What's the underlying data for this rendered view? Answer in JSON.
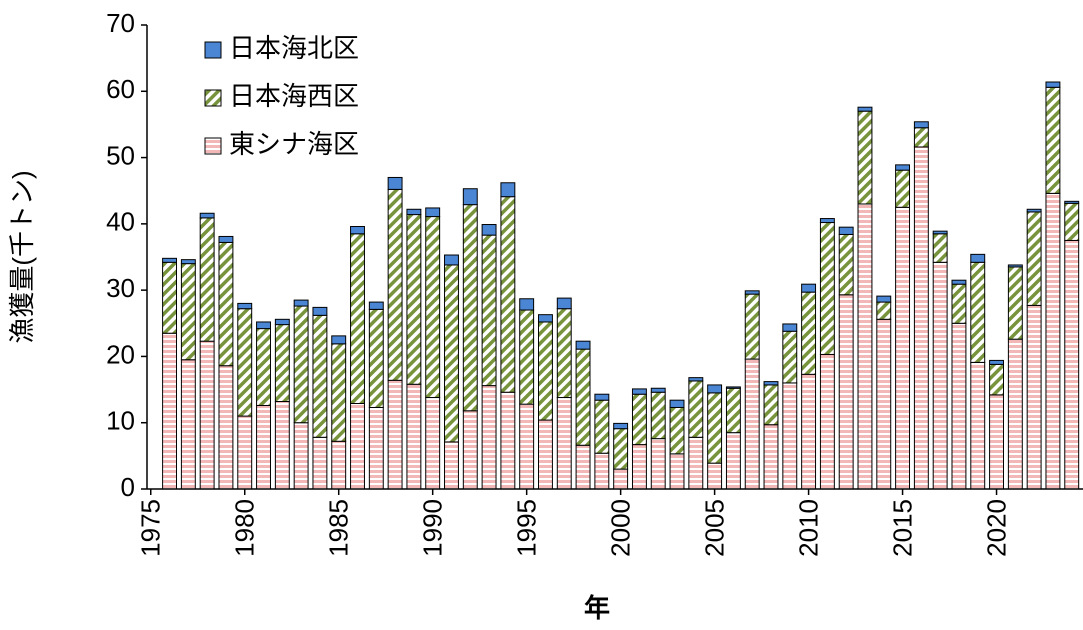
{
  "chart_data": {
    "type": "bar",
    "stacked": true,
    "xlabel": "年",
    "ylabel": "漁獲量(千トン)",
    "x": [
      1976,
      1977,
      1978,
      1979,
      1980,
      1981,
      1982,
      1983,
      1984,
      1985,
      1986,
      1987,
      1988,
      1989,
      1990,
      1991,
      1992,
      1993,
      1994,
      1995,
      1996,
      1997,
      1998,
      1999,
      2000,
      2001,
      2002,
      2003,
      2004,
      2005,
      2006,
      2007,
      2008,
      2009,
      2010,
      2011,
      2012,
      2013,
      2014,
      2015,
      2016,
      2017,
      2018,
      2019,
      2020,
      2021,
      2022,
      2023,
      2024
    ],
    "xlim": [
      1974.8,
      2024.6
    ],
    "xticks": [
      1975,
      1980,
      1985,
      1990,
      1995,
      2000,
      2005,
      2010,
      2015,
      2020
    ],
    "ylim": [
      0,
      70
    ],
    "yticks": [
      0,
      10,
      20,
      30,
      40,
      50,
      60,
      70
    ],
    "legend": "upper-left",
    "series": [
      {
        "name": "東シナ海区",
        "color": "#f2b8b8",
        "pattern": "horizontal",
        "values": [
          23.5,
          19.5,
          22.3,
          18.6,
          11.0,
          12.6,
          13.2,
          10.0,
          7.8,
          7.2,
          12.9,
          12.3,
          16.4,
          15.8,
          13.8,
          7.1,
          11.8,
          15.6,
          14.6,
          12.8,
          10.4,
          13.8,
          6.6,
          5.4,
          3.0,
          6.7,
          7.6,
          5.3,
          7.8,
          3.9,
          8.5,
          19.6,
          9.7,
          16.0,
          17.3,
          20.3,
          29.3,
          43.0,
          25.6,
          42.5,
          51.6,
          34.2,
          25.0,
          19.1,
          14.2,
          22.6,
          27.7,
          44.6,
          37.5
        ]
      },
      {
        "name": "日本海西区",
        "color": "#77933c",
        "pattern": "diagonal",
        "values": [
          10.7,
          14.5,
          18.6,
          18.6,
          16.2,
          11.6,
          11.6,
          17.6,
          18.4,
          14.7,
          25.6,
          14.8,
          28.8,
          25.6,
          27.3,
          26.7,
          31.1,
          22.7,
          29.5,
          14.2,
          14.8,
          13.4,
          14.5,
          8.0,
          6.1,
          7.6,
          7.0,
          7.0,
          8.5,
          10.6,
          6.7,
          9.8,
          6.0,
          7.8,
          12.4,
          19.9,
          9.1,
          14.0,
          2.6,
          5.6,
          2.9,
          4.3,
          5.9,
          15.1,
          4.6,
          10.9,
          14.1,
          16.0,
          5.6
        ]
      },
      {
        "name": "日本海北区",
        "color": "#4a86d4",
        "pattern": "solid",
        "values": [
          0.6,
          0.6,
          0.7,
          0.9,
          0.8,
          1.0,
          0.8,
          0.9,
          1.2,
          1.2,
          1.1,
          1.1,
          1.8,
          0.8,
          1.3,
          1.5,
          2.4,
          1.6,
          2.1,
          1.7,
          1.1,
          1.6,
          1.2,
          0.9,
          0.8,
          0.8,
          0.6,
          1.1,
          0.5,
          1.2,
          0.2,
          0.5,
          0.5,
          1.1,
          1.2,
          0.6,
          1.1,
          0.6,
          0.9,
          0.8,
          0.9,
          0.4,
          0.6,
          1.2,
          0.6,
          0.3,
          0.4,
          0.8,
          0.3
        ]
      }
    ]
  }
}
